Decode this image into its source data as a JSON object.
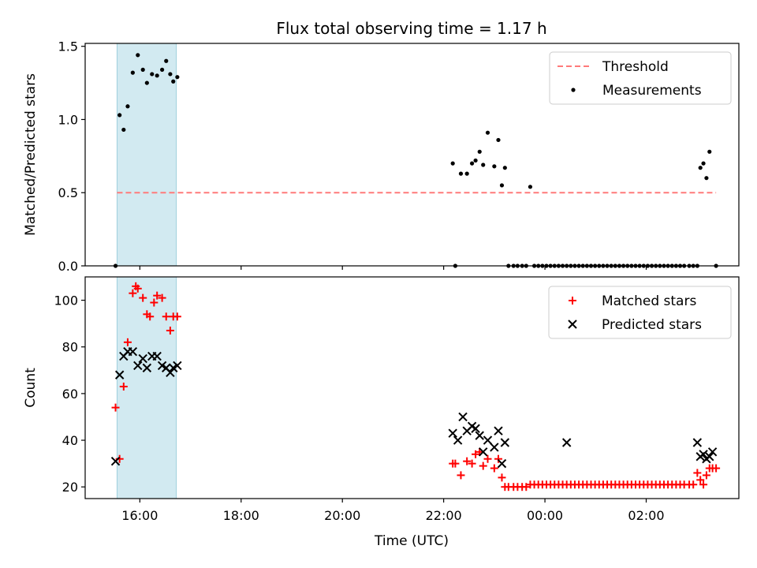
{
  "chart_data": {
    "title": "Flux total observing time = 1.17 h",
    "xlabel": "Time (UTC)",
    "x_ticks": [
      {
        "label": "16:00",
        "hours": 16
      },
      {
        "label": "18:00",
        "hours": 18
      },
      {
        "label": "20:00",
        "hours": 20
      },
      {
        "label": "22:00",
        "hours": 22
      },
      {
        "label": "00:00",
        "hours": 24
      },
      {
        "label": "02:00",
        "hours": 26
      }
    ],
    "xlim_hours": [
      14.92,
      27.83
    ],
    "highlight_span_hours": [
      15.55,
      16.72
    ],
    "colors": {
      "threshold": "#ff7a7a",
      "span": "#add8e6",
      "matched": "#ff0000",
      "predicted": "#000000",
      "measurements": "#000000"
    },
    "panels": [
      {
        "type": "scatter",
        "ylabel": "Matched/Predicted stars",
        "ylim": [
          0,
          1.52
        ],
        "yticks": [
          "0.0",
          "0.5",
          "1.0",
          "1.5"
        ],
        "ytick_values": [
          0,
          0.5,
          1.0,
          1.5
        ],
        "legend": {
          "position": "top-right",
          "entries": [
            "Threshold",
            "Measurements"
          ]
        },
        "threshold": {
          "name": "Threshold",
          "value": 0.5,
          "x_range": [
            15.55,
            27.38
          ]
        },
        "series": [
          {
            "name": "Measurements",
            "marker": "dot",
            "x": [
              15.52,
              15.6,
              15.68,
              15.76,
              15.86,
              15.96,
              16.06,
              16.14,
              16.24,
              16.34,
              16.44,
              16.52,
              16.6,
              16.66,
              16.74,
              22.18,
              22.23,
              22.34,
              22.46,
              22.56,
              22.63,
              22.71,
              22.78,
              22.87,
              23.0,
              23.08,
              23.15,
              23.21,
              23.28,
              23.38,
              23.46,
              23.55,
              23.63,
              23.71,
              23.79,
              23.87,
              23.95,
              24.03,
              24.11,
              24.19,
              24.27,
              24.35,
              24.43,
              24.51,
              24.59,
              24.67,
              24.75,
              24.83,
              24.91,
              24.99,
              25.07,
              25.15,
              25.23,
              25.31,
              25.39,
              25.47,
              25.55,
              25.63,
              25.71,
              25.79,
              25.87,
              25.95,
              26.03,
              26.11,
              26.19,
              26.27,
              26.35,
              26.43,
              26.51,
              26.59,
              26.67,
              26.75,
              26.85,
              26.93,
              27.01,
              27.07,
              27.13,
              27.19,
              27.25,
              27.38
            ],
            "y": [
              0,
              1.03,
              0.93,
              1.09,
              1.32,
              1.44,
              1.34,
              1.25,
              1.31,
              1.3,
              1.34,
              1.4,
              1.31,
              1.26,
              1.29,
              0.7,
              0,
              0.63,
              0.63,
              0.7,
              0.72,
              0.78,
              0.69,
              0.91,
              0.68,
              0.86,
              0.55,
              0.67,
              0,
              0,
              0,
              0,
              0,
              0.54,
              0,
              0,
              0,
              0,
              0,
              0,
              0,
              0,
              0,
              0,
              0,
              0,
              0,
              0,
              0,
              0,
              0,
              0,
              0,
              0,
              0,
              0,
              0,
              0,
              0,
              0,
              0,
              0,
              0,
              0,
              0,
              0,
              0,
              0,
              0,
              0,
              0,
              0,
              0,
              0,
              0,
              0.67,
              0.7,
              0.6,
              0.78,
              0
            ]
          }
        ]
      },
      {
        "type": "scatter",
        "ylabel": "Count",
        "ylim": [
          15,
          110
        ],
        "yticks": [
          "20",
          "40",
          "60",
          "80",
          "100"
        ],
        "ytick_values": [
          20,
          40,
          60,
          80,
          100
        ],
        "legend": {
          "position": "top-right",
          "entries": [
            "Matched stars",
            "Predicted stars"
          ]
        },
        "series": [
          {
            "name": "Matched stars",
            "marker": "plus",
            "x": [
              15.52,
              15.6,
              15.68,
              15.76,
              15.86,
              15.92,
              15.96,
              16.06,
              16.14,
              16.2,
              16.28,
              16.34,
              16.44,
              16.52,
              16.6,
              16.66,
              16.74,
              22.18,
              22.23,
              22.34,
              22.46,
              22.56,
              22.63,
              22.71,
              22.78,
              22.87,
              23.0,
              23.08,
              23.15,
              23.21,
              23.28,
              23.38,
              23.46,
              23.55,
              23.63,
              23.71,
              23.79,
              23.87,
              23.95,
              24.03,
              24.11,
              24.19,
              24.27,
              24.35,
              24.43,
              24.51,
              24.59,
              24.67,
              24.75,
              24.83,
              24.91,
              24.99,
              25.07,
              25.15,
              25.23,
              25.31,
              25.39,
              25.47,
              25.55,
              25.63,
              25.71,
              25.79,
              25.87,
              25.95,
              26.03,
              26.11,
              26.19,
              26.27,
              26.35,
              26.43,
              26.51,
              26.59,
              26.67,
              26.75,
              26.85,
              26.93,
              27.01,
              27.07,
              27.13,
              27.19,
              27.25,
              27.31,
              27.38
            ],
            "y": [
              54,
              32,
              63,
              82,
              103,
              106,
              105,
              101,
              94,
              93,
              99,
              102,
              101,
              93,
              87,
              93,
              93,
              30,
              30,
              25,
              31,
              30,
              34,
              35,
              29,
              32,
              28,
              32,
              24,
              20,
              20,
              20,
              20,
              20,
              20,
              21,
              21,
              21,
              21,
              21,
              21,
              21,
              21,
              21,
              21,
              21,
              21,
              21,
              21,
              21,
              21,
              21,
              21,
              21,
              21,
              21,
              21,
              21,
              21,
              21,
              21,
              21,
              21,
              21,
              21,
              21,
              21,
              21,
              21,
              21,
              21,
              21,
              21,
              21,
              21,
              21,
              26,
              23,
              21,
              25,
              28,
              28,
              28
            ]
          },
          {
            "name": "Predicted stars",
            "marker": "x",
            "x": [
              15.52,
              15.6,
              15.68,
              15.76,
              15.86,
              15.96,
              16.06,
              16.14,
              16.24,
              16.34,
              16.44,
              16.52,
              16.6,
              16.66,
              16.74,
              22.18,
              22.28,
              22.38,
              22.46,
              22.56,
              22.63,
              22.71,
              22.78,
              22.87,
              23.0,
              23.08,
              23.15,
              23.21,
              24.43,
              27.01,
              27.07,
              27.13,
              27.19,
              27.25,
              27.31
            ],
            "y": [
              31,
              68,
              76,
              78,
              78,
              72,
              75,
              71,
              76,
              76,
              72,
              71,
              69,
              71,
              72,
              43,
              40,
              50,
              44,
              46,
              45,
              42,
              35,
              40,
              37,
              44,
              30,
              39,
              39,
              39,
              33,
              34,
              32,
              33,
              35
            ]
          }
        ]
      }
    ]
  }
}
